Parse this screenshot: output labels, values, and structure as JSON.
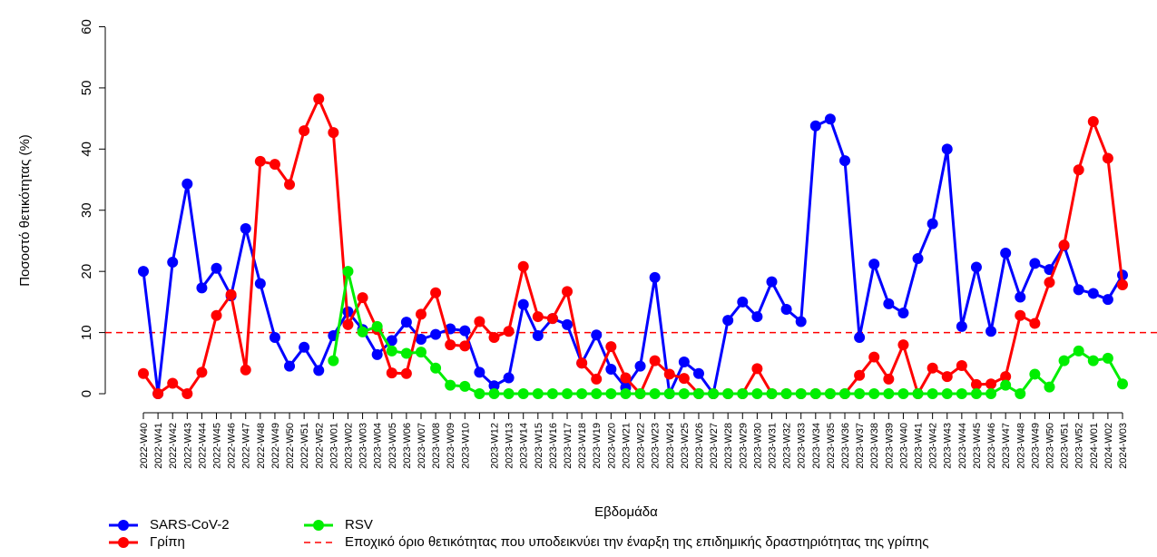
{
  "chart_data": {
    "type": "line",
    "y_label": "Ποσοστό θετικότητας (%)",
    "x_label": "Εβδομάδα",
    "categories": [
      "2022-W40",
      "2022-W41",
      "2022-W42",
      "2022-W43",
      "2022-W44",
      "2022-W45",
      "2022-W46",
      "2022-W47",
      "2022-W48",
      "2022-W49",
      "2022-W50",
      "2022-W51",
      "2022-W52",
      "2023-W01",
      "2023-W02",
      "2023-W03",
      "2023-W04",
      "2023-W05",
      "2023-W06",
      "2023-W07",
      "2023-W08",
      "2023-W09",
      "2023-W10",
      null,
      "2023-W12",
      "2023-W13",
      "2023-W14",
      "2023-W15",
      "2023-W16",
      "2023-W17",
      "2023-W18",
      "2023-W19",
      "2023-W20",
      "2023-W21",
      "2023-W22",
      "2023-W23",
      "2023-W24",
      "2023-W25",
      "2023-W26",
      "2023-W27",
      "2023-W28",
      "2023-W29",
      "2023-W30",
      "2023-W31",
      "2023-W32",
      "2023-W33",
      "2023-W34",
      "2023-W35",
      "2023-W36",
      "2023-W37",
      "2023-W38",
      "2023-W39",
      "2023-W40",
      "2023-W41",
      "2023-W42",
      "2023-W43",
      "2023-W44",
      "2023-W45",
      "2023-W46",
      "2023-W47",
      "2023-W48",
      "2023-W49",
      "2023-W50",
      "2023-W51",
      "2023-W52",
      "2024-W01",
      "2024-W02",
      "2024-W03"
    ],
    "series": [
      {
        "name": "SARS-CoV-2",
        "color": "#0000ff",
        "values": [
          20,
          0,
          21.5,
          34.3,
          17.3,
          20.5,
          16,
          27,
          18,
          9.2,
          4.5,
          7.6,
          3.8,
          9.5,
          13.4,
          10.5,
          6.4,
          8.7,
          11.7,
          8.9,
          9.7,
          10.6,
          10.3,
          3.5,
          1.3,
          2.6,
          14.6,
          9.5,
          12.3,
          11.3,
          5,
          9.6,
          4,
          1,
          4.5,
          19,
          0,
          5.2,
          3.3,
          0,
          12,
          15,
          12.6,
          18.3,
          13.8,
          11.8,
          43.8,
          44.9,
          38.1,
          9.2,
          21.2,
          14.7,
          13.2,
          22.1,
          27.8,
          40,
          11,
          20.7,
          10.2,
          23,
          15.8,
          21.3,
          20.3,
          24.2,
          17,
          16.4,
          15.4,
          19.4
        ]
      },
      {
        "name": "Γρίπη",
        "color": "#ff0000",
        "values": [
          3.3,
          0,
          1.7,
          0,
          3.5,
          12.8,
          16.2,
          3.9,
          38,
          37.5,
          34.2,
          43,
          48.2,
          42.7,
          11.3,
          15.7,
          10.5,
          3.4,
          3.3,
          13,
          16.5,
          8,
          7.8,
          11.8,
          9.2,
          10.2,
          20.8,
          12.6,
          12.3,
          16.7,
          5,
          2.4,
          7.7,
          2.6,
          0,
          5.4,
          3.2,
          2.5,
          0,
          0,
          0,
          0,
          4.1,
          0,
          0,
          0,
          0,
          0,
          0,
          3,
          6,
          2.4,
          8,
          0,
          4.2,
          2.8,
          4.6,
          1.5,
          1.6,
          2.8,
          12.8,
          11.5,
          18.2,
          24.3,
          36.6,
          44.5,
          38.5,
          17.8
        ]
      },
      {
        "name": "RSV",
        "color": "#00ee00",
        "values": [
          null,
          null,
          null,
          null,
          null,
          null,
          null,
          null,
          null,
          null,
          null,
          null,
          null,
          5.4,
          20,
          10.1,
          11,
          7,
          6.6,
          6.8,
          4.2,
          1.4,
          1.2,
          0,
          0,
          0,
          0,
          0,
          0,
          0,
          0,
          0,
          0,
          0,
          0,
          0,
          0,
          0,
          0,
          0,
          0,
          0,
          0,
          0,
          0,
          0,
          0,
          0,
          0,
          0,
          0,
          0,
          0,
          0,
          0,
          0,
          0,
          0,
          0,
          1.4,
          0,
          3.2,
          1.1,
          5.4,
          7,
          5.4,
          5.8,
          1.6
        ]
      }
    ],
    "threshold": {
      "value": 10,
      "color": "#ff0000",
      "label": "Εποχικό όριο θετικότητας που υποδεικνύει την έναρξη της επιδημικής δραστηριότητας της γρίπης"
    },
    "ylim": [
      -2,
      62
    ],
    "yticks": [
      0,
      10,
      20,
      30,
      40,
      50,
      60
    ]
  }
}
